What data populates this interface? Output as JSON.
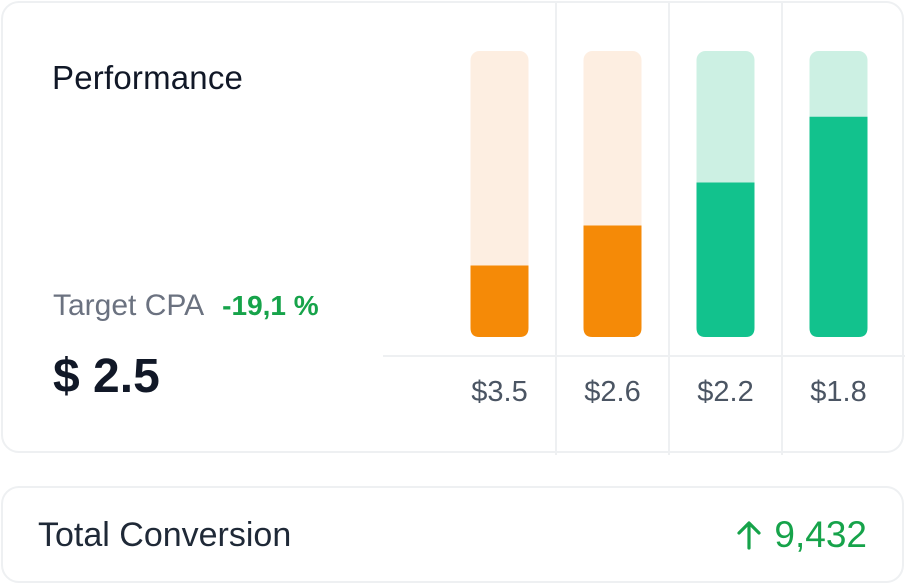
{
  "performance": {
    "title": "Performance",
    "metric_label": "Target CPA",
    "metric_change": "-19,1 %",
    "metric_value": "$ 2.5"
  },
  "total_conversion": {
    "label": "Total Conversion",
    "value": "9,432",
    "arrow_icon": "arrow-up-icon"
  },
  "colors": {
    "orange": "#f58a07",
    "orange_light": "#fdeee1",
    "green": "#12c28d",
    "green_light": "#ccf0e3",
    "positive_text": "#16a34a"
  },
  "chart_data": {
    "type": "bar",
    "categories": [
      "$3.5",
      "$2.6",
      "$2.2",
      "$1.8"
    ],
    "values": [
      0.25,
      0.39,
      0.54,
      0.77
    ],
    "ylim": [
      0,
      1
    ],
    "grid": true,
    "bar_colors": [
      "#f58a07",
      "#f58a07",
      "#12c28d",
      "#12c28d"
    ],
    "track_colors": [
      "#fdeee1",
      "#fdeee1",
      "#ccf0e3",
      "#ccf0e3"
    ]
  }
}
